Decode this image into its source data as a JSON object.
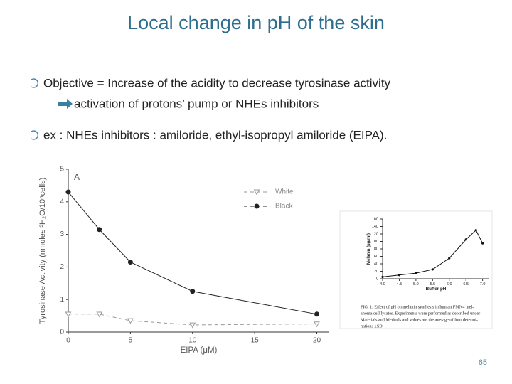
{
  "title": "Local change in pH of the skin",
  "bullets": [
    {
      "text": "Objective = Increase of the acidity to decrease tyrosinase activity",
      "sub": "activation of protons’ pump or NHEs inhibitors"
    },
    {
      "text": "ex : NHEs inhibitors : amiloride, ethyl-isopropyl amiloride (EIPA)."
    }
  ],
  "page_number": "65",
  "chart_data": [
    {
      "type": "line",
      "panel_label": "A",
      "x_label": "EIPA (μM)",
      "y_label": "Tyrosinase Activity (nmoles ³H₂O/10⁶cells)",
      "x": [
        0,
        2.5,
        5,
        10,
        20
      ],
      "series": [
        {
          "name": "White",
          "color": "#9a9a9a",
          "dashed": true,
          "marker": "triangle-open",
          "values": [
            0.55,
            0.55,
            0.35,
            0.22,
            0.25
          ]
        },
        {
          "name": "Black",
          "color": "#222222",
          "dashed": false,
          "marker": "circle",
          "values": [
            4.3,
            3.15,
            2.15,
            1.25,
            0.55
          ]
        }
      ],
      "xlim": [
        0,
        21
      ],
      "ylim": [
        0,
        5
      ],
      "xticks": [
        0,
        5,
        10,
        15,
        20
      ],
      "yticks": [
        0,
        1,
        2,
        3,
        4,
        5
      ],
      "legend": "upper right"
    },
    {
      "type": "line",
      "x_label": "Buffer pH",
      "y_label": "Melanin (µg/ml)",
      "x": [
        4.0,
        4.5,
        5.0,
        5.5,
        6.0,
        6.5,
        6.8,
        7.0
      ],
      "series": [
        {
          "color": "#111111",
          "dashed": false,
          "marker": "circle",
          "values": [
            5,
            10,
            15,
            25,
            55,
            105,
            130,
            95
          ]
        }
      ],
      "xlim": [
        4.0,
        7.2
      ],
      "ylim": [
        0,
        160
      ],
      "xticks": [
        {
          "value": 4,
          "label": "4.0"
        },
        4.5,
        {
          "value": 5,
          "label": "5.0"
        },
        5.5,
        {
          "value": 6,
          "label": "6.0"
        },
        6.5,
        {
          "value": 7,
          "label": "7.0"
        }
      ],
      "yticks": [
        0,
        20,
        40,
        60,
        80,
        100,
        120,
        140,
        160
      ],
      "caption": [
        "FIG. 1.   Effect of pH on melanin synthesis in human FMN4 mel-",
        "anoma cell lysates. Experiments were performed as described under",
        "Materials and Methods and values are the average of four determi-",
        "nations ±SD."
      ]
    }
  ]
}
